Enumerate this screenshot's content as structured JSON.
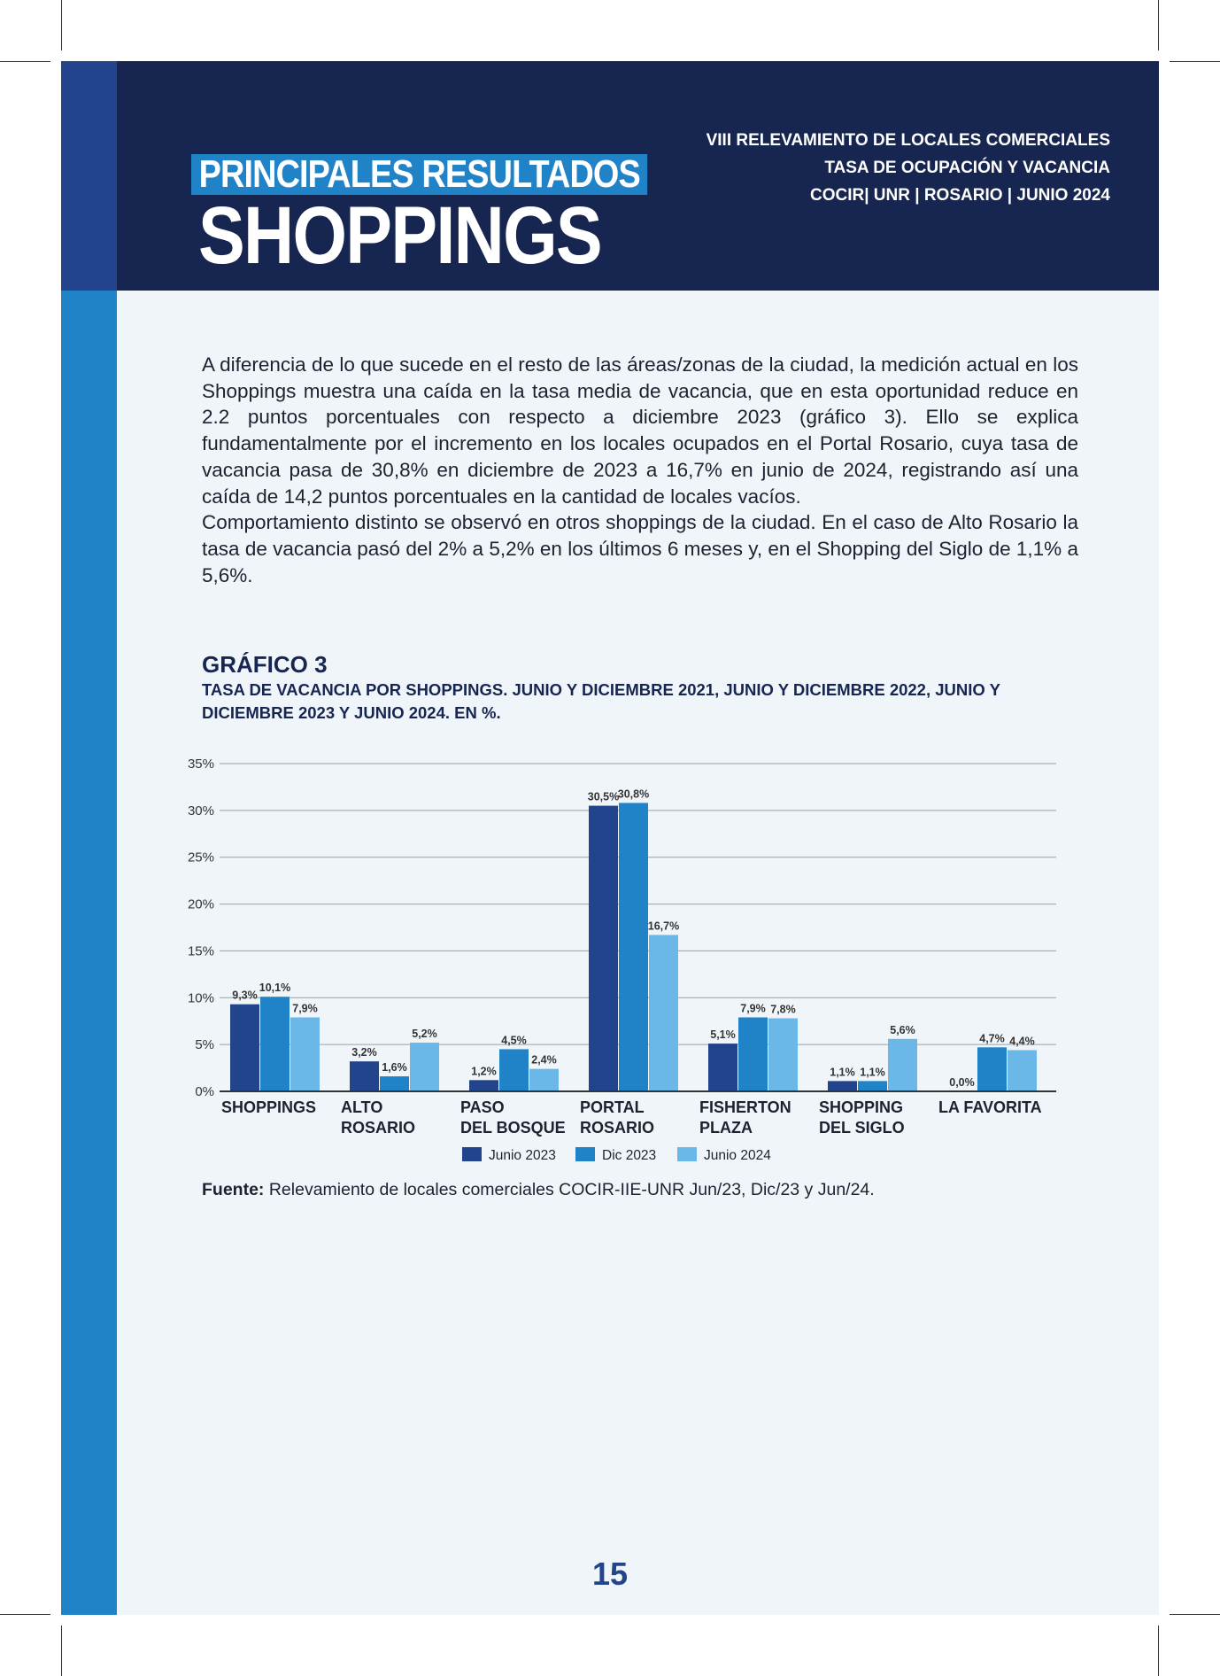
{
  "header": {
    "kicker": "PRINCIPALES RESULTADOS",
    "title": "SHOPPINGS",
    "meta_lines": [
      "VIII RELEVAMIENTO DE LOCALES COMERCIALES",
      "TASA DE OCUPACIÓN Y VACANCIA",
      "COCIR| UNR | ROSARIO | JUNIO 2024"
    ]
  },
  "body": {
    "paragraphs": [
      "A diferencia de lo que sucede en el resto de las áreas/zonas de la ciudad, la medición actual en los Shoppings muestra una caída en la tasa media de vacancia, que en esta oportunidad reduce en 2.2 puntos porcentuales con respecto a diciembre 2023 (gráfico 3).  Ello se explica fundamentalmente por el incremento en los locales ocupados en el Portal Rosario, cuya tasa de vacancia pasa de  30,8% en diciembre de 2023 a 16,7% en junio de 2024, registrando así una caída de 14,2 puntos porcentuales en la cantidad de locales vacíos.",
      "Comportamiento distinto se observó en otros shoppings de la ciudad. En el caso de Alto Rosario la tasa de vacancia pasó del 2% a 5,2% en los últimos 6 meses y, en el Shopping del Siglo de 1,1% a 5,6%."
    ]
  },
  "chart_section": {
    "title": "GRÁFICO 3",
    "subtitle": "TASA DE VACANCIA POR SHOPPINGS. JUNIO Y DICIEMBRE 2021, JUNIO Y DICIEMBRE 2022, JUNIO Y DICIEMBRE 2023 Y JUNIO 2024. EN %.",
    "source_label": "Fuente:",
    "source_text": " Relevamiento de locales comerciales COCIR-IIE-UNR Jun/23, Dic/23 y Jun/24."
  },
  "chart_data": {
    "type": "bar",
    "categories": [
      [
        "SHOPPINGS"
      ],
      [
        "ALTO",
        "ROSARIO"
      ],
      [
        "PASO",
        "DEL BOSQUE"
      ],
      [
        "PORTAL",
        "ROSARIO"
      ],
      [
        "FISHERTON",
        "PLAZA"
      ],
      [
        "SHOPPING",
        "DEL SIGLO"
      ],
      [
        "LA FAVORITA"
      ]
    ],
    "series": [
      {
        "name": "Junio 2023",
        "color": "#22448c",
        "values": [
          9.3,
          3.2,
          1.2,
          30.5,
          5.1,
          1.1,
          0.0
        ],
        "labels": [
          "9,3%",
          "3,2%",
          "1,2%",
          "30,5%",
          "5,1%",
          "1,1%",
          "0,0%"
        ]
      },
      {
        "name": "Dic 2023",
        "color": "#2183c7",
        "values": [
          10.1,
          1.6,
          4.5,
          30.8,
          7.9,
          1.1,
          4.7
        ],
        "labels": [
          "10,1%",
          "1,6%",
          "4,5%",
          "30,8%",
          "7,9%",
          "1,1%",
          "4,7%"
        ]
      },
      {
        "name": "Junio 2024",
        "color": "#6ab7e8",
        "values": [
          7.9,
          5.2,
          2.4,
          16.7,
          7.8,
          5.6,
          4.4
        ],
        "labels": [
          "7,9%",
          "5,2%",
          "2,4%",
          "16,7%",
          "7,8%",
          "5,6%",
          "4,4%"
        ]
      }
    ],
    "yticks": [
      "0%",
      "5%",
      "10%",
      "15%",
      "20%",
      "25%",
      "30%",
      "35%"
    ],
    "ylim": [
      0,
      35
    ],
    "grid": true,
    "legend": "bottom"
  },
  "page": {
    "number": "15"
  }
}
